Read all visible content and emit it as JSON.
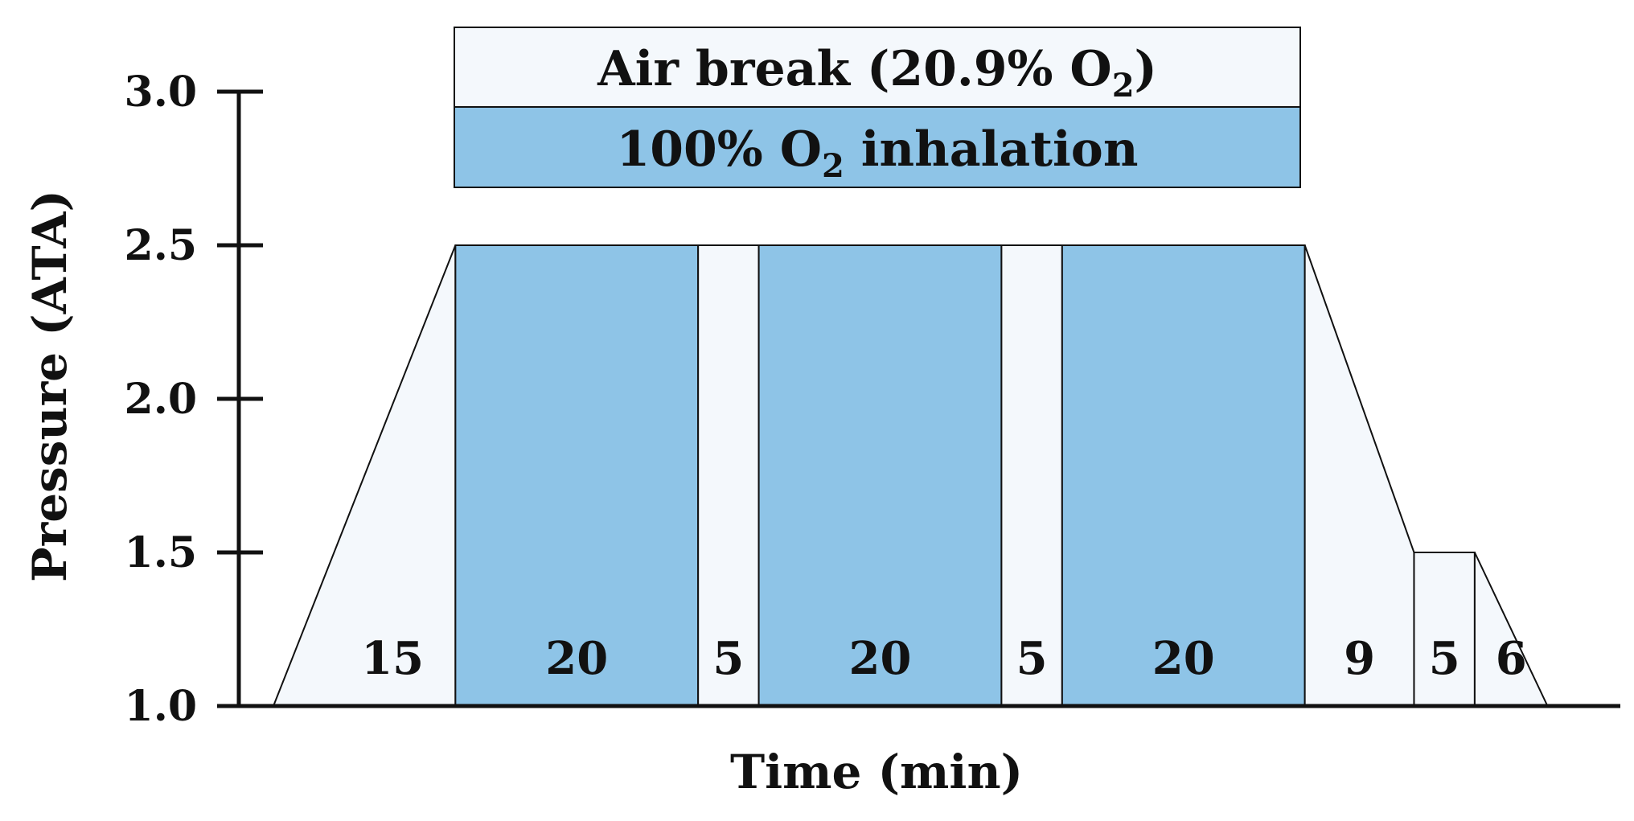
{
  "colors": {
    "oxygen": "#8ec4e7",
    "air": "#f4f8fc",
    "line": "#111111"
  },
  "legend": {
    "air_prefix": "Air break (20.9% O",
    "air_sub": "2",
    "air_suffix": ")",
    "o2_prefix": "100% O",
    "o2_sub": "2",
    "o2_suffix": " inhalation"
  },
  "chart_data": {
    "type": "area",
    "xlabel": "Time (min)",
    "ylabel": "Pressure (ATA)",
    "ylim": [
      1.0,
      3.0
    ],
    "yticks": [
      "1.0",
      "1.5",
      "2.0",
      "2.5",
      "3.0"
    ],
    "grid": false,
    "segments": [
      {
        "duration": 15,
        "label": "15",
        "gas": "air",
        "start_pressure": 1.0,
        "end_pressure": 2.5
      },
      {
        "duration": 20,
        "label": "20",
        "gas": "oxygen",
        "start_pressure": 2.5,
        "end_pressure": 2.5
      },
      {
        "duration": 5,
        "label": "5",
        "gas": "air",
        "start_pressure": 2.5,
        "end_pressure": 2.5
      },
      {
        "duration": 20,
        "label": "20",
        "gas": "oxygen",
        "start_pressure": 2.5,
        "end_pressure": 2.5
      },
      {
        "duration": 5,
        "label": "5",
        "gas": "air",
        "start_pressure": 2.5,
        "end_pressure": 2.5
      },
      {
        "duration": 20,
        "label": "20",
        "gas": "oxygen",
        "start_pressure": 2.5,
        "end_pressure": 2.5
      },
      {
        "duration": 9,
        "label": "9",
        "gas": "air",
        "start_pressure": 2.5,
        "end_pressure": 1.5
      },
      {
        "duration": 5,
        "label": "5",
        "gas": "air",
        "start_pressure": 1.5,
        "end_pressure": 1.5
      },
      {
        "duration": 6,
        "label": "6",
        "gas": "air",
        "start_pressure": 1.5,
        "end_pressure": 1.0
      }
    ]
  }
}
